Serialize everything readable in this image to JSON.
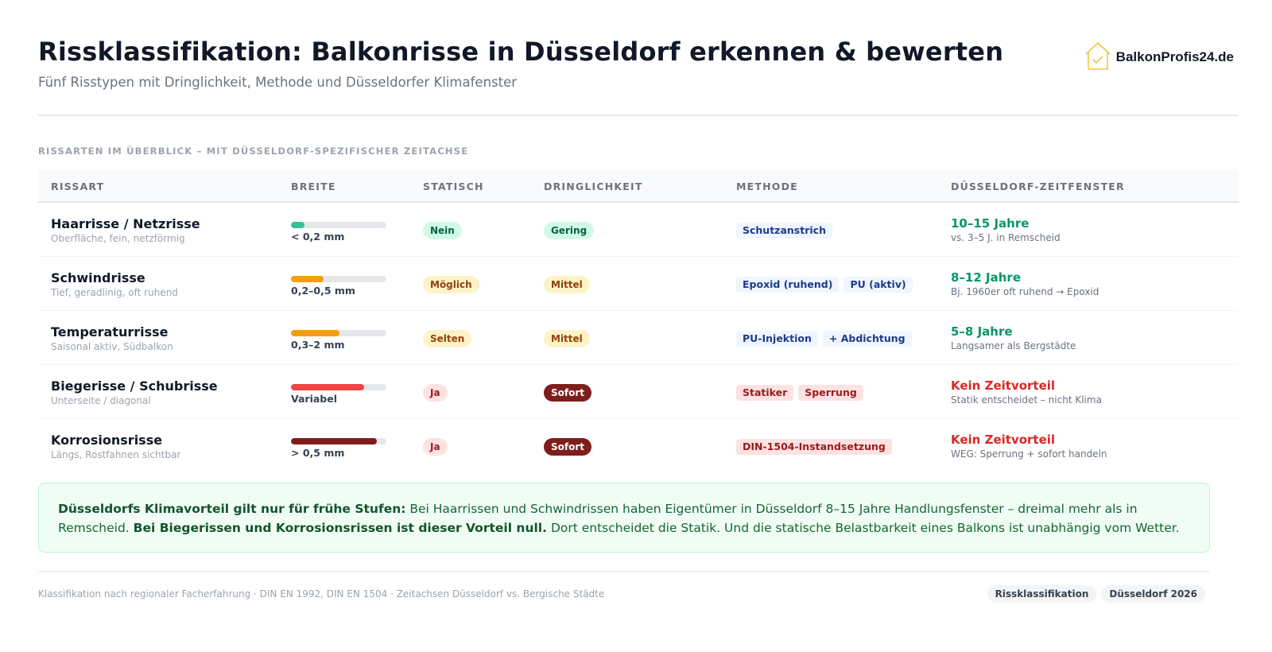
{
  "header": {
    "title": "Rissklassifikation: Balkonrisse in Düsseldorf erkennen & bewerten",
    "subtitle": "Fünf Risstypen mit Dringlichkeit, Methode und Düsseldorfer Klimafenster",
    "logo_text": "BalkonProfis24.de",
    "logo_icon": "house-check-icon"
  },
  "section_label": "RISSARTEN IM ÜBERBLICK – MIT DÜSSELDORF-SPEZIFISCHER ZEITACHSE",
  "table": {
    "columns": [
      "RISSART",
      "BREITE",
      "STATISCH",
      "DRINGLICHKEIT",
      "METHODE",
      "DÜSSELDORF-ZEITFENSTER"
    ],
    "rows": [
      {
        "name": "Haarrisse / Netzrisse",
        "desc": "Oberfläche, fein, netzförmig",
        "width_label": "< 0,2 mm",
        "width_level": 0.14,
        "width_color": "#34c38f",
        "statisch": "Nein",
        "statisch_bg": "#d1fae5",
        "statisch_fg": "#065f46",
        "dringlichkeit": "Gering",
        "dring_bg": "#d1fae5",
        "dring_fg": "#065f46",
        "methods": [
          {
            "label": "Schutzanstrich",
            "kind": "blue"
          }
        ],
        "tf_title": "10–15 Jahre",
        "tf_color": "#059669",
        "tf_sub": "vs. 3–5 J. in Remscheid"
      },
      {
        "name": "Schwindrisse",
        "desc": "Tief, geradlinig, oft ruhend",
        "width_label": "0,2–0,5 mm",
        "width_level": 0.34,
        "width_color": "#f59e0b",
        "statisch": "Möglich",
        "statisch_bg": "#fef3c7",
        "statisch_fg": "#92400e",
        "dringlichkeit": "Mittel",
        "dring_bg": "#fef3c7",
        "dring_fg": "#92400e",
        "methods": [
          {
            "label": "Epoxid (ruhend)",
            "kind": "blue"
          },
          {
            "label": "PU (aktiv)",
            "kind": "blue"
          }
        ],
        "tf_title": "8–12 Jahre",
        "tf_color": "#059669",
        "tf_sub": "Bj. 1960er oft ruhend → Epoxid"
      },
      {
        "name": "Temperaturrisse",
        "desc": "Saisonal aktiv, Südbalkon",
        "width_label": "0,3–2 mm",
        "width_level": 0.51,
        "width_color": "#f59e0b",
        "statisch": "Selten",
        "statisch_bg": "#fef3c7",
        "statisch_fg": "#92400e",
        "dringlichkeit": "Mittel",
        "dring_bg": "#fef3c7",
        "dring_fg": "#92400e",
        "methods": [
          {
            "label": "PU-Injektion",
            "kind": "blue"
          },
          {
            "label": "+ Abdichtung",
            "kind": "blue"
          }
        ],
        "tf_title": "5–8 Jahre",
        "tf_color": "#059669",
        "tf_sub": "Langsamer als Bergstädte"
      },
      {
        "name": "Biegerisse / Schubrisse",
        "desc": "Unterseite / diagonal",
        "width_label": "Variabel",
        "width_level": 0.77,
        "width_color": "#ef4444",
        "statisch": "Ja",
        "statisch_bg": "#fee2e2",
        "statisch_fg": "#991b1b",
        "dringlichkeit": "Sofort",
        "dring_bg": "#7f1d1d",
        "dring_fg": "#ffffff",
        "methods": [
          {
            "label": "Statiker",
            "kind": "red"
          },
          {
            "label": "Sperrung",
            "kind": "red"
          }
        ],
        "tf_title": "Kein Zeitvorteil",
        "tf_color": "#dc2626",
        "tf_sub": "Statik entscheidet – nicht Klima"
      },
      {
        "name": "Korrosionsrisse",
        "desc": "Längs, Rostfahnen sichtbar",
        "width_label": "> 0,5 mm",
        "width_level": 0.9,
        "width_color": "#7f1d1d",
        "statisch": "Ja",
        "statisch_bg": "#fee2e2",
        "statisch_fg": "#991b1b",
        "dringlichkeit": "Sofort",
        "dring_bg": "#7f1d1d",
        "dring_fg": "#ffffff",
        "methods": [
          {
            "label": "DIN-1504-Instandsetzung",
            "kind": "red"
          }
        ],
        "tf_title": "Kein Zeitvorteil",
        "tf_color": "#dc2626",
        "tf_sub": "WEG: Sperrung + sofort handeln"
      }
    ]
  },
  "callout": {
    "bold1": "Düsseldorfs Klimavorteil gilt nur für frühe Stufen:",
    "text1": " Bei Haarrissen und Schwindrissen haben Eigentümer in Düsseldorf 8–15 Jahre Handlungsfenster – dreimal mehr als in Remscheid. ",
    "bold2": "Bei Biegerissen und Korrosionsrissen ist dieser Vorteil null.",
    "text2": " Dort entscheidet die Statik. Und die statische Belastbarkeit eines Balkons ist unabhängig vom Wetter."
  },
  "footer": {
    "text": "Klassifikation nach regionaler Facherfahrung · DIN EN 1992, DIN EN 1504 · Zeitachsen Düsseldorf vs. Bergische Städte",
    "tags": [
      "Rissklassifikation",
      "Düsseldorf 2026"
    ]
  }
}
